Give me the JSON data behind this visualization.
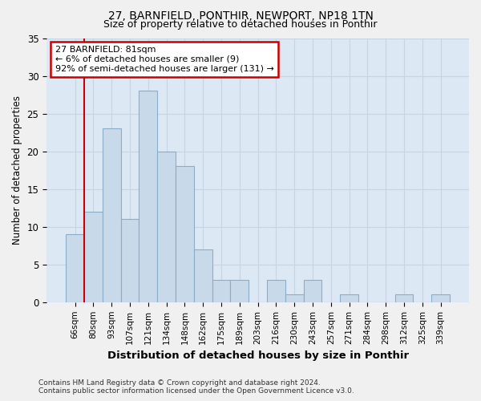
{
  "title1": "27, BARNFIELD, PONTHIR, NEWPORT, NP18 1TN",
  "title2": "Size of property relative to detached houses in Ponthir",
  "xlabel": "Distribution of detached houses by size in Ponthir",
  "ylabel": "Number of detached properties",
  "categories": [
    "66sqm",
    "80sqm",
    "93sqm",
    "107sqm",
    "121sqm",
    "134sqm",
    "148sqm",
    "162sqm",
    "175sqm",
    "189sqm",
    "203sqm",
    "216sqm",
    "230sqm",
    "243sqm",
    "257sqm",
    "271sqm",
    "284sqm",
    "298sqm",
    "312sqm",
    "325sqm",
    "339sqm"
  ],
  "values": [
    9,
    12,
    23,
    11,
    28,
    20,
    18,
    7,
    3,
    3,
    0,
    3,
    1,
    3,
    0,
    1,
    0,
    0,
    1,
    0,
    1
  ],
  "bar_color": "#c8d9ea",
  "bar_edge_color": "#8aaec8",
  "annotation_text_line1": "27 BARNFIELD: 81sqm",
  "annotation_text_line2": "← 6% of detached houses are smaller (9)",
  "annotation_text_line3": "92% of semi-detached houses are larger (131) →",
  "annotation_box_color": "#ffffff",
  "annotation_box_edge": "#cc0000",
  "vline_color": "#cc0000",
  "ylim": [
    0,
    35
  ],
  "yticks": [
    0,
    5,
    10,
    15,
    20,
    25,
    30,
    35
  ],
  "grid_color": "#c8d4e4",
  "background_color": "#dce8f4",
  "fig_background": "#f0f0f0",
  "footer1": "Contains HM Land Registry data © Crown copyright and database right 2024.",
  "footer2": "Contains public sector information licensed under the Open Government Licence v3.0."
}
